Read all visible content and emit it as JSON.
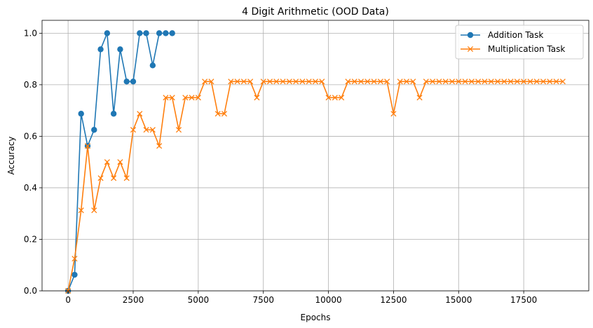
{
  "chart_data": {
    "type": "line",
    "title": "4 Digit Arithmetic (OOD Data)",
    "xlabel": "Epochs",
    "ylabel": "Accuracy",
    "xlim": [
      -1000,
      20000
    ],
    "ylim": [
      0,
      1.05
    ],
    "xticks": [
      0,
      2500,
      5000,
      7500,
      10000,
      12500,
      15000,
      17500
    ],
    "xtick_labels": [
      "0",
      "2500",
      "5000",
      "7500",
      "10000",
      "12500",
      "15000",
      "17500"
    ],
    "yticks": [
      0.0,
      0.2,
      0.4,
      0.6,
      0.8,
      1.0
    ],
    "ytick_labels": [
      "0.0",
      "0.2",
      "0.4",
      "0.6",
      "0.8",
      "1.0"
    ],
    "grid": true,
    "legend_position": "top-right",
    "series": [
      {
        "name": "Addition Task",
        "color": "#1f77b4",
        "marker": "circle",
        "x": [
          0,
          250,
          500,
          750,
          1000,
          1250,
          1500,
          1750,
          2000,
          2250,
          2500,
          2750,
          3000,
          3250,
          3500,
          3750,
          4000
        ],
        "y": [
          0.0,
          0.0625,
          0.6875,
          0.5625,
          0.625,
          0.9375,
          1.0,
          0.6875,
          0.9375,
          0.8125,
          0.8125,
          1.0,
          1.0,
          0.875,
          1.0,
          1.0,
          1.0
        ]
      },
      {
        "name": "Multiplication Task",
        "color": "#ff7f0e",
        "marker": "x",
        "x": [
          0,
          250,
          500,
          750,
          1000,
          1250,
          1500,
          1750,
          2000,
          2250,
          2500,
          2750,
          3000,
          3250,
          3500,
          3750,
          4000,
          4250,
          4500,
          4750,
          5000,
          5250,
          5500,
          5750,
          6000,
          6250,
          6500,
          6750,
          7000,
          7250,
          7500,
          7750,
          8000,
          8250,
          8500,
          8750,
          9000,
          9250,
          9500,
          9750,
          10000,
          10250,
          10500,
          10750,
          11000,
          11250,
          11500,
          11750,
          12000,
          12250,
          12500,
          12750,
          13000,
          13250,
          13500,
          13750,
          14000,
          14250,
          14500,
          14750,
          15000,
          15250,
          15500,
          15750,
          16000,
          16250,
          16500,
          16750,
          17000,
          17250,
          17500,
          17750,
          18000,
          18250,
          18500,
          18750,
          19000
        ],
        "y": [
          0.0,
          0.125,
          0.3125,
          0.5625,
          0.3125,
          0.4375,
          0.5,
          0.4375,
          0.5,
          0.4375,
          0.625,
          0.6875,
          0.625,
          0.625,
          0.5625,
          0.75,
          0.75,
          0.625,
          0.75,
          0.75,
          0.75,
          0.8125,
          0.8125,
          0.6875,
          0.6875,
          0.8125,
          0.8125,
          0.8125,
          0.8125,
          0.75,
          0.8125,
          0.8125,
          0.8125,
          0.8125,
          0.8125,
          0.8125,
          0.8125,
          0.8125,
          0.8125,
          0.8125,
          0.75,
          0.75,
          0.75,
          0.8125,
          0.8125,
          0.8125,
          0.8125,
          0.8125,
          0.8125,
          0.8125,
          0.6875,
          0.8125,
          0.8125,
          0.8125,
          0.75,
          0.8125,
          0.8125,
          0.8125,
          0.8125,
          0.8125,
          0.8125,
          0.8125,
          0.8125,
          0.8125,
          0.8125,
          0.8125,
          0.8125,
          0.8125,
          0.8125,
          0.8125,
          0.8125,
          0.8125,
          0.8125,
          0.8125,
          0.8125,
          0.8125,
          0.8125
        ]
      }
    ]
  }
}
